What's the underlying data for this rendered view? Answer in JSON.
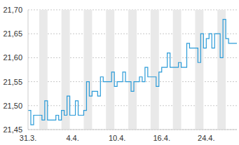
{
  "chart_data": {
    "type": "line",
    "categories": [
      "31.3.",
      null,
      null,
      null,
      null,
      null,
      null,
      null,
      null,
      null,
      null,
      null,
      null,
      null,
      null,
      null,
      "4.4.",
      null,
      null,
      null,
      null,
      null,
      null,
      null,
      null,
      null,
      null,
      null,
      null,
      null,
      null,
      null,
      "10.4.",
      null,
      null,
      null,
      null,
      null,
      null,
      null,
      null,
      null,
      null,
      null,
      null,
      null,
      null,
      null,
      "16.4.",
      null,
      null,
      null,
      null,
      null,
      null,
      null,
      null,
      null,
      null,
      null,
      null,
      null,
      null,
      null,
      "24.4.",
      null,
      null,
      null,
      null,
      null,
      null,
      null,
      null,
      null,
      null,
      null
    ],
    "values": [
      21.49,
      21.46,
      21.48,
      21.48,
      21.48,
      21.47,
      21.51,
      21.47,
      21.47,
      21.47,
      21.48,
      21.47,
      21.49,
      21.48,
      21.52,
      21.48,
      21.48,
      21.51,
      21.48,
      21.48,
      21.49,
      21.55,
      21.52,
      21.53,
      21.53,
      21.52,
      21.56,
      21.55,
      21.55,
      21.55,
      21.57,
      21.54,
      21.55,
      21.55,
      21.57,
      21.55,
      21.55,
      21.53,
      21.55,
      21.55,
      21.56,
      21.55,
      21.58,
      21.56,
      21.56,
      21.56,
      21.54,
      21.57,
      21.58,
      21.58,
      21.61,
      21.58,
      21.58,
      21.58,
      21.59,
      21.58,
      21.58,
      21.63,
      21.62,
      21.62,
      21.62,
      21.59,
      21.65,
      21.62,
      21.64,
      21.65,
      21.62,
      21.65,
      21.65,
      21.6,
      21.68,
      21.64,
      21.63,
      21.63,
      21.63,
      21.63
    ],
    "color": "#2b9bd8",
    "line_style": "step",
    "ylim": [
      21.45,
      21.7
    ],
    "yticks": [
      {
        "value": 21.45,
        "label": "21,45"
      },
      {
        "value": 21.5,
        "label": "21,50"
      },
      {
        "value": 21.55,
        "label": "21,55"
      },
      {
        "value": 21.6,
        "label": "21,60"
      },
      {
        "value": 21.65,
        "label": "21,65"
      },
      {
        "value": 21.7,
        "label": "21,70"
      }
    ],
    "grid": true
  }
}
